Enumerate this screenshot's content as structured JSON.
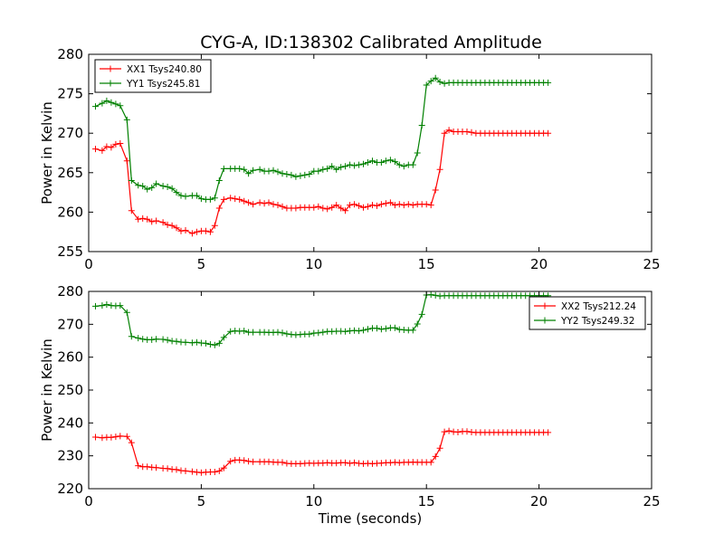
{
  "title": "CYG-A, ID:138302 Calibrated Amplitude",
  "chart_data": [
    {
      "type": "line",
      "title": "CYG-A, ID:138302 Calibrated Amplitude",
      "xlabel": "",
      "ylabel": "Power in Kelvin",
      "xlim": [
        0,
        25
      ],
      "ylim": [
        255,
        280
      ],
      "xticks": [
        "0",
        "5",
        "10",
        "15",
        "20",
        "25"
      ],
      "yticks": [
        "255",
        "260",
        "265",
        "270",
        "275",
        "280"
      ],
      "grid": false,
      "legend_position": "top-left",
      "x": [
        0.3,
        0.6,
        0.8,
        1.0,
        1.2,
        1.4,
        1.7,
        1.9,
        2.2,
        2.4,
        2.6,
        2.8,
        3.0,
        3.3,
        3.5,
        3.7,
        3.9,
        4.1,
        4.3,
        4.6,
        4.8,
        5.0,
        5.2,
        5.4,
        5.6,
        5.8,
        6.0,
        6.3,
        6.5,
        6.7,
        6.9,
        7.1,
        7.3,
        7.6,
        7.8,
        8.0,
        8.2,
        8.4,
        8.6,
        8.8,
        9.0,
        9.2,
        9.4,
        9.6,
        9.8,
        10.0,
        10.2,
        10.4,
        10.6,
        10.8,
        11.0,
        11.2,
        11.4,
        11.6,
        11.8,
        12.0,
        12.2,
        12.4,
        12.6,
        12.8,
        13.0,
        13.2,
        13.4,
        13.6,
        13.8,
        14.0,
        14.2,
        14.4,
        14.6,
        14.8,
        15.0,
        15.2,
        15.4,
        15.6,
        15.8,
        16.0,
        16.2,
        16.4,
        16.6,
        16.8,
        17.0,
        17.2,
        17.4,
        17.6,
        17.8,
        18.0,
        18.2,
        18.4,
        18.6,
        18.8,
        19.0,
        19.2,
        19.4,
        19.6,
        19.8,
        20.0,
        20.2,
        20.4
      ],
      "series": [
        {
          "name": "XX1 Tsys240.80",
          "color": "#ff0000",
          "values": [
            268.0,
            267.8,
            268.3,
            268.2,
            268.6,
            268.7,
            266.5,
            260.2,
            259.1,
            259.2,
            259.1,
            258.8,
            258.9,
            258.7,
            258.4,
            258.3,
            258.0,
            257.6,
            257.7,
            257.3,
            257.5,
            257.6,
            257.6,
            257.5,
            258.3,
            260.5,
            261.6,
            261.8,
            261.7,
            261.6,
            261.4,
            261.2,
            261.0,
            261.2,
            261.1,
            261.2,
            261.0,
            260.9,
            260.7,
            260.5,
            260.5,
            260.5,
            260.6,
            260.6,
            260.6,
            260.6,
            260.7,
            260.5,
            260.4,
            260.6,
            260.9,
            260.5,
            260.2,
            260.9,
            261.0,
            260.8,
            260.6,
            260.7,
            260.9,
            260.8,
            261.0,
            261.1,
            261.2,
            260.9,
            261.0,
            260.9,
            261.0,
            260.9,
            261.0,
            261.0,
            261.0,
            260.9,
            262.8,
            265.4,
            270.0,
            270.4,
            270.2,
            270.2,
            270.2,
            270.2,
            270.1,
            270.0,
            270.0,
            270.0,
            270.0,
            270.0,
            270.0,
            270.0,
            270.0,
            270.0,
            270.0,
            270.0,
            270.0,
            270.0,
            270.0,
            270.0,
            270.0,
            270.0
          ]
        },
        {
          "name": "YY1 Tsys245.81",
          "color": "#008000",
          "values": [
            273.4,
            273.8,
            274.1,
            273.9,
            273.7,
            273.5,
            271.7,
            264.0,
            263.4,
            263.3,
            262.9,
            263.1,
            263.6,
            263.3,
            263.2,
            263.0,
            262.5,
            262.1,
            262.0,
            262.1,
            262.1,
            261.7,
            261.6,
            261.6,
            261.8,
            264.0,
            265.5,
            265.5,
            265.5,
            265.5,
            265.4,
            264.9,
            265.3,
            265.4,
            265.2,
            265.2,
            265.3,
            265.1,
            264.9,
            264.8,
            264.7,
            264.5,
            264.6,
            264.7,
            264.8,
            265.2,
            265.2,
            265.4,
            265.5,
            265.8,
            265.4,
            265.7,
            265.8,
            266.0,
            265.9,
            266.0,
            266.1,
            266.3,
            266.5,
            266.3,
            266.3,
            266.5,
            266.6,
            266.4,
            266.0,
            265.8,
            266.0,
            266.0,
            267.5,
            271.0,
            276.1,
            276.6,
            277.0,
            276.5,
            276.3,
            276.4,
            276.4,
            276.4,
            276.4,
            276.4,
            276.4,
            276.4,
            276.4,
            276.4,
            276.4,
            276.4,
            276.4,
            276.4,
            276.4,
            276.4,
            276.4,
            276.4,
            276.4,
            276.4,
            276.4,
            276.4,
            276.4,
            276.4
          ]
        }
      ]
    },
    {
      "type": "line",
      "title": "",
      "xlabel": "Time (seconds)",
      "ylabel": "Power in Kelvin",
      "xlim": [
        0,
        25
      ],
      "ylim": [
        220,
        280
      ],
      "xticks": [
        "0",
        "5",
        "10",
        "15",
        "20",
        "25"
      ],
      "yticks": [
        "220",
        "230",
        "240",
        "250",
        "260",
        "270",
        "280"
      ],
      "grid": false,
      "legend_position": "top-right",
      "x": [
        0.3,
        0.6,
        0.8,
        1.0,
        1.2,
        1.4,
        1.7,
        1.9,
        2.2,
        2.4,
        2.6,
        2.8,
        3.0,
        3.3,
        3.5,
        3.7,
        3.9,
        4.1,
        4.3,
        4.6,
        4.8,
        5.0,
        5.2,
        5.4,
        5.6,
        5.8,
        6.0,
        6.3,
        6.5,
        6.7,
        6.9,
        7.1,
        7.3,
        7.6,
        7.8,
        8.0,
        8.2,
        8.4,
        8.6,
        8.8,
        9.0,
        9.2,
        9.4,
        9.6,
        9.8,
        10.0,
        10.2,
        10.4,
        10.6,
        10.8,
        11.0,
        11.2,
        11.4,
        11.6,
        11.8,
        12.0,
        12.2,
        12.4,
        12.6,
        12.8,
        13.0,
        13.2,
        13.4,
        13.6,
        13.8,
        14.0,
        14.2,
        14.4,
        14.6,
        14.8,
        15.0,
        15.2,
        15.4,
        15.6,
        15.8,
        16.0,
        16.2,
        16.4,
        16.6,
        16.8,
        17.0,
        17.2,
        17.4,
        17.6,
        17.8,
        18.0,
        18.2,
        18.4,
        18.6,
        18.8,
        19.0,
        19.2,
        19.4,
        19.6,
        19.8,
        20.0,
        20.2,
        20.4
      ],
      "series": [
        {
          "name": "XX2 Tsys212.24",
          "color": "#ff0000",
          "values": [
            235.7,
            235.5,
            235.6,
            235.6,
            235.8,
            236.0,
            235.9,
            234.0,
            227.0,
            226.7,
            226.7,
            226.5,
            226.4,
            226.2,
            226.1,
            225.9,
            225.8,
            225.5,
            225.4,
            225.2,
            225.0,
            224.9,
            225.0,
            225.1,
            225.1,
            225.4,
            226.3,
            228.3,
            228.7,
            228.7,
            228.6,
            228.3,
            228.2,
            228.2,
            228.2,
            228.2,
            228.1,
            228.0,
            228.0,
            227.7,
            227.6,
            227.6,
            227.6,
            227.7,
            227.8,
            227.7,
            227.8,
            227.8,
            227.9,
            227.8,
            227.8,
            227.9,
            227.9,
            227.7,
            227.9,
            227.7,
            227.6,
            227.7,
            227.6,
            227.7,
            227.8,
            227.9,
            227.9,
            228.0,
            227.9,
            228.0,
            228.0,
            228.1,
            228.0,
            228.0,
            228.0,
            228.0,
            229.8,
            232.3,
            237.3,
            237.6,
            237.3,
            237.2,
            237.4,
            237.4,
            237.2,
            237.1,
            237.1,
            237.1,
            237.1,
            237.1,
            237.1,
            237.1,
            237.1,
            237.1,
            237.1,
            237.1,
            237.1,
            237.1,
            237.1,
            237.1,
            237.1,
            237.1
          ]
        },
        {
          "name": "YY2 Tsys249.32",
          "color": "#008000",
          "values": [
            275.5,
            275.7,
            276.0,
            275.7,
            275.6,
            275.7,
            273.6,
            266.3,
            265.8,
            265.5,
            265.3,
            265.3,
            265.5,
            265.4,
            265.2,
            264.9,
            264.8,
            264.6,
            264.5,
            264.4,
            264.5,
            264.3,
            264.2,
            263.9,
            263.7,
            264.2,
            266.0,
            267.8,
            268.0,
            267.9,
            268.0,
            267.6,
            267.6,
            267.6,
            267.6,
            267.5,
            267.5,
            267.6,
            267.4,
            267.1,
            266.9,
            266.8,
            266.9,
            267.0,
            267.0,
            267.3,
            267.4,
            267.6,
            267.8,
            267.8,
            267.9,
            267.9,
            267.8,
            268.0,
            268.1,
            268.0,
            268.2,
            268.5,
            268.8,
            268.8,
            268.5,
            268.7,
            268.9,
            268.9,
            268.4,
            268.3,
            268.2,
            268.2,
            270.1,
            273.0,
            278.9,
            279.0,
            278.8,
            278.6,
            278.7,
            278.7,
            278.7,
            278.7,
            278.7,
            278.7,
            278.7,
            278.7,
            278.7,
            278.7,
            278.7,
            278.7,
            278.7,
            278.7,
            278.7,
            278.7,
            278.7,
            278.7,
            278.7,
            278.7,
            278.7,
            278.7,
            278.7,
            278.7
          ]
        }
      ]
    }
  ]
}
